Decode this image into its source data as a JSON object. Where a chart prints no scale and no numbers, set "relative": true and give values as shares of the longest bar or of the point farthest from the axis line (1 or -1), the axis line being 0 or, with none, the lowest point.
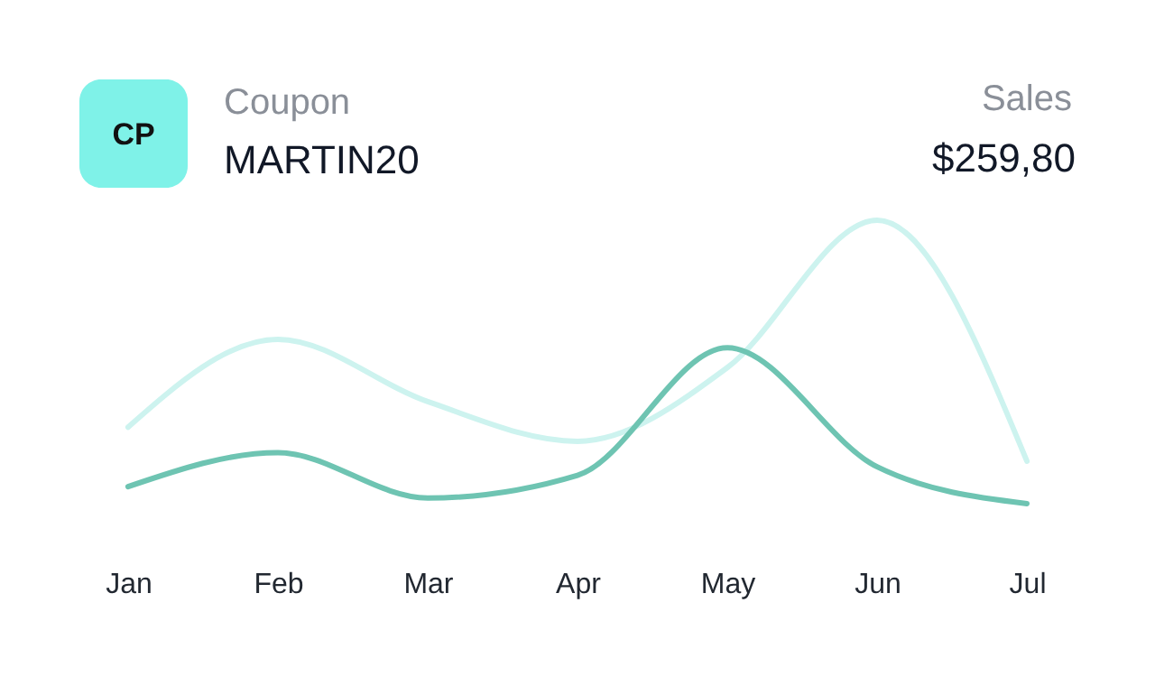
{
  "chart_data": {
    "type": "line",
    "relative": true,
    "categories": [
      "Jan",
      "Feb",
      "Mar",
      "Apr",
      "May",
      "Jun",
      "Jul"
    ],
    "series": [
      {
        "color": "#cdf3ef",
        "values": [
          0.27,
          0.58,
          0.36,
          0.22,
          0.48,
          1,
          0.15
        ]
      },
      {
        "color": "#6ec4b2",
        "values": [
          0.06,
          0.18,
          0.02,
          0.1,
          0.55,
          0.13,
          0
        ]
      }
    ],
    "annotations": [
      "CP",
      "Coupon",
      "MARTIN20",
      "Sales",
      "$259,80"
    ],
    "grid": false,
    "marker": "none",
    "line_style": "solid"
  }
}
